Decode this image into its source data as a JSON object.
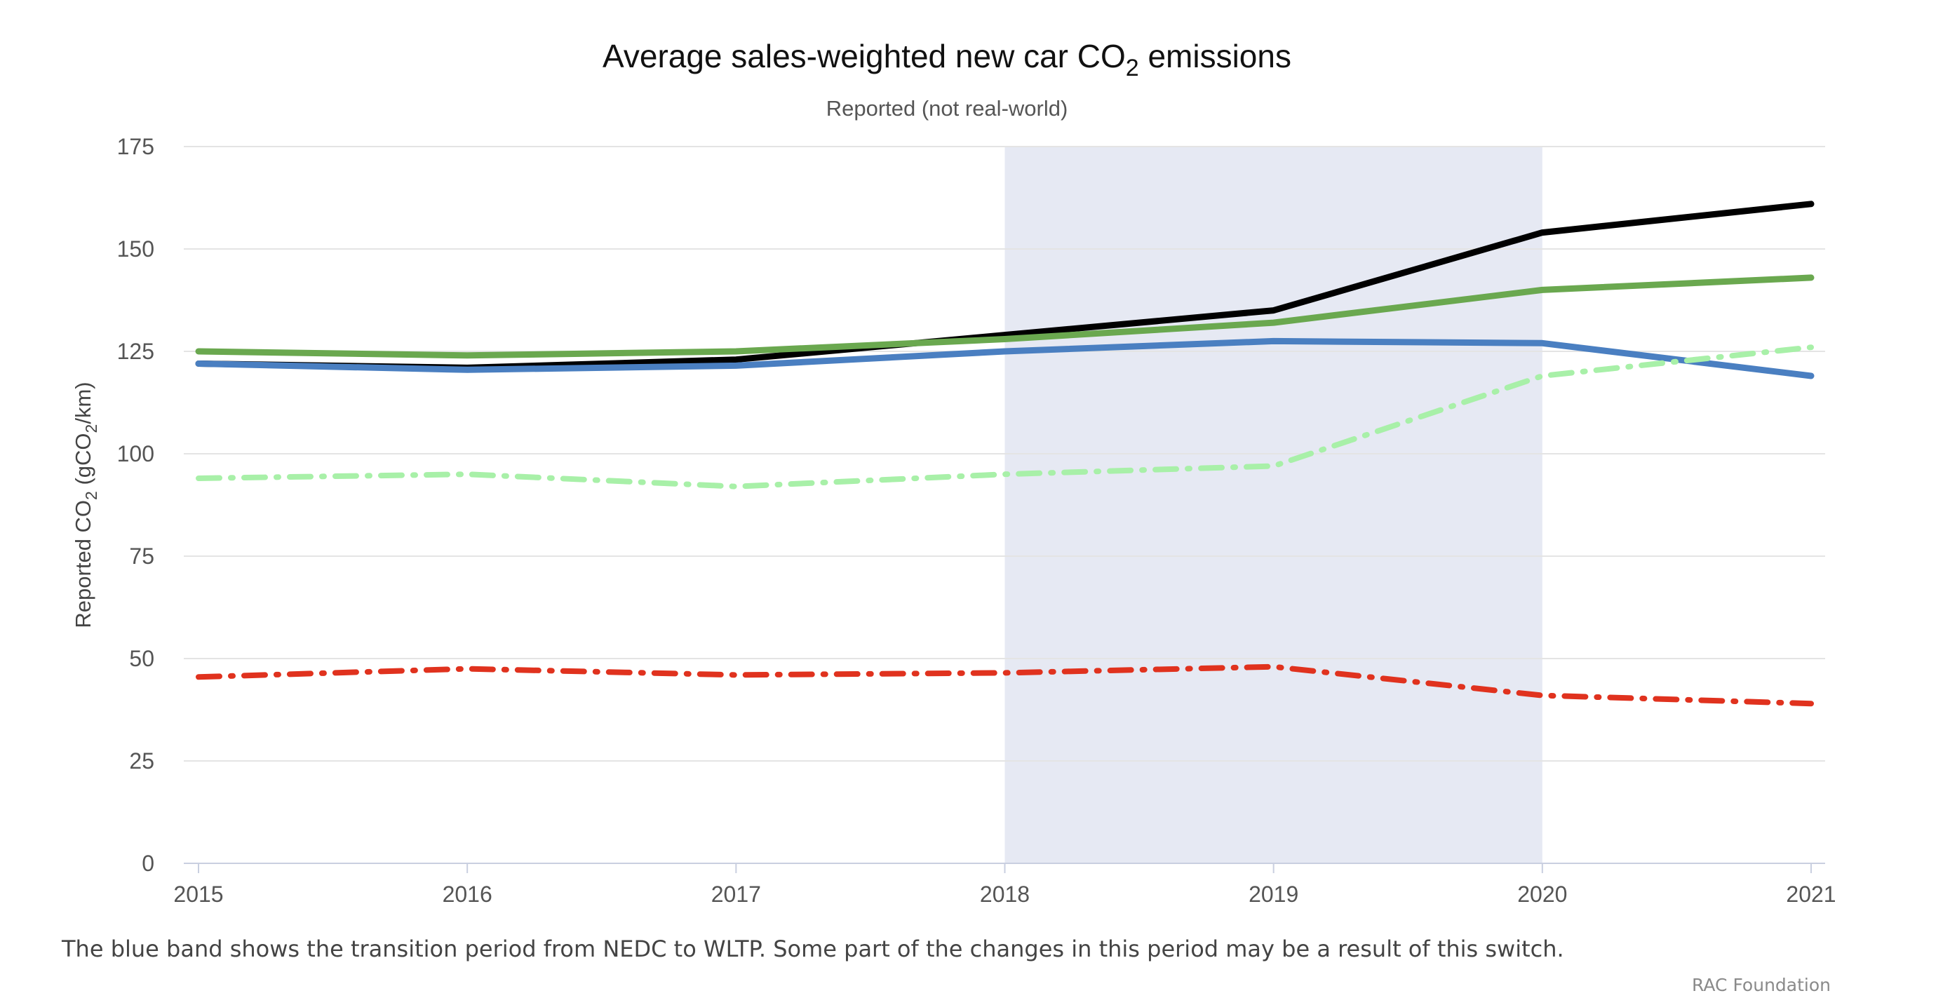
{
  "chart_data": {
    "type": "line",
    "title": "Average sales-weighted new car CO",
    "title_subscript": "2",
    "title_suffix": " emissions",
    "subtitle": "Reported (not real-world)",
    "ylabel_prefix": "Reported CO",
    "ylabel_subscript": "2",
    "ylabel_mid": " (gCO",
    "ylabel_subscript2": "2",
    "ylabel_suffix": "/km)",
    "xlabel": "",
    "x": [
      "2015",
      "2016",
      "2017",
      "2018",
      "2019",
      "2020",
      "2021"
    ],
    "x_tick_labels": [
      "2015",
      "2016",
      "2017",
      "2018",
      "2019",
      "2020",
      "2021"
    ],
    "ylim": [
      0,
      175
    ],
    "y_ticks": [
      0,
      25,
      50,
      75,
      100,
      125,
      150,
      175
    ],
    "y_tick_labels": [
      "0",
      "25",
      "50",
      "75",
      "100",
      "125",
      "150",
      "175"
    ],
    "grid": true,
    "shaded_band": {
      "from": "2018",
      "to": "2020",
      "color": "#e6e9f3"
    },
    "series": [
      {
        "values": [
          122,
          121,
          123,
          129,
          135,
          154,
          161
        ],
        "color": "#000000",
        "style": "solid"
      },
      {
        "values": [
          125,
          124,
          125,
          128,
          132,
          140,
          143
        ],
        "color": "#6aa84f",
        "style": "solid"
      },
      {
        "values": [
          122,
          120.5,
          121.5,
          125,
          127.5,
          127,
          119
        ],
        "color": "#4a7fc1",
        "style": "solid"
      },
      {
        "values": [
          94,
          95,
          92,
          95,
          97,
          119,
          126
        ],
        "color": "#a8f0a8",
        "style": "dashdot"
      },
      {
        "values": [
          45.5,
          47.5,
          46,
          46.5,
          48,
          41,
          39
        ],
        "color": "#e0321e",
        "style": "dashdot"
      }
    ]
  },
  "footer": {
    "note": "The blue band shows the transition period from NEDC to WLTP.  Some part of the changes in this period may be a result of this switch.",
    "source": "RAC Foundation"
  }
}
